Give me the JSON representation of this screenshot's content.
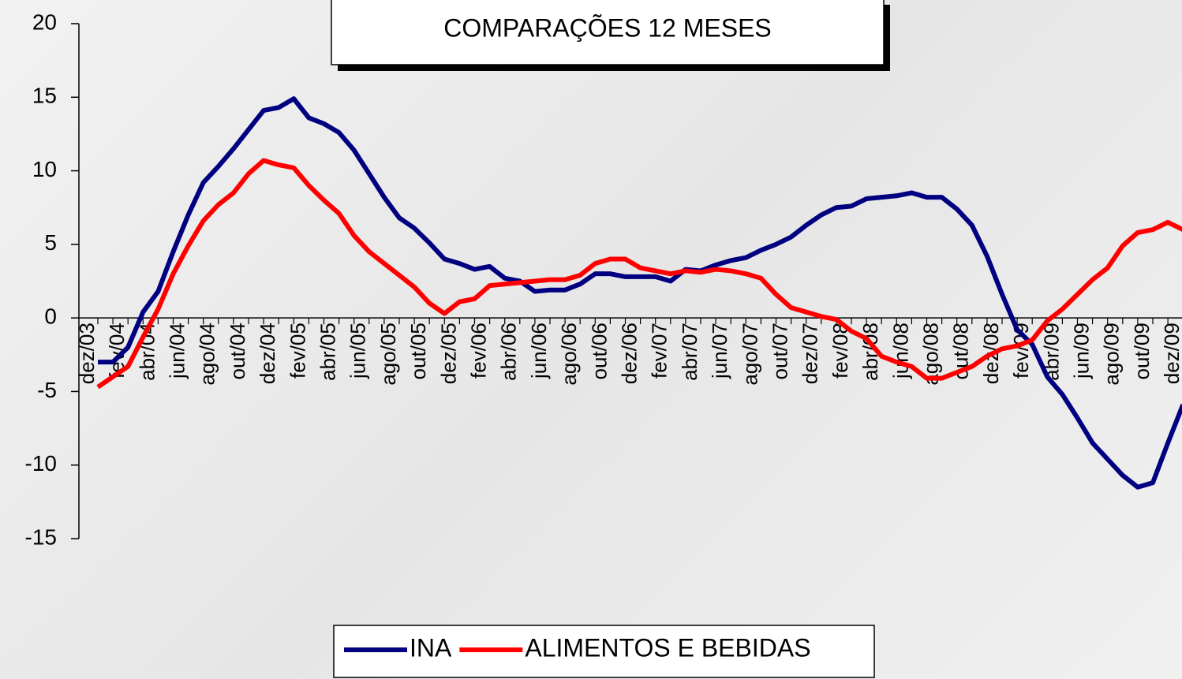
{
  "chart_data": {
    "type": "line",
    "title": "COMPARAÇÕES 12 MESES",
    "categories": [
      "dez/03",
      null,
      "fev/04",
      null,
      "abr/04",
      null,
      "jun/04",
      null,
      "ago/04",
      null,
      "out/04",
      null,
      "dez/04",
      null,
      "fev/05",
      null,
      "abr/05",
      null,
      "jun/05",
      null,
      "ago/05",
      null,
      "out/05",
      null,
      "dez/05",
      null,
      "fev/06",
      null,
      "abr/06",
      null,
      "jun/06",
      null,
      "ago/06",
      null,
      "out/06",
      null,
      "dez/06",
      null,
      "fev/07",
      null,
      "abr/07",
      null,
      "jun/07",
      null,
      "ago/07",
      null,
      "out/07",
      null,
      "dez/07",
      null,
      "fev/08",
      null,
      "abr/08",
      null,
      "jun/08",
      null,
      "ago/08",
      null,
      "out/08",
      null,
      "dez/08",
      null,
      "fev/09",
      null,
      "abr/09",
      null,
      "jun/09",
      null,
      "ago/09",
      null,
      "out/09",
      null,
      "dez/09"
    ],
    "series": [
      {
        "name": "INA",
        "color": "#000080",
        "values": [
          -3,
          -3,
          -2,
          0.4,
          1.8,
          4.5,
          7,
          9.2,
          10.3,
          11.5,
          12.8,
          14.1,
          14.3,
          14.9,
          13.6,
          13.2,
          12.6,
          11.4,
          9.8,
          8.2,
          6.8,
          6.1,
          5.1,
          4.0,
          3.7,
          3.3,
          3.5,
          2.7,
          2.5,
          1.8,
          1.9,
          1.9,
          2.3,
          3.0,
          3.0,
          2.8,
          2.8,
          2.8,
          2.5,
          3.3,
          3.2,
          3.6,
          3.9,
          4.1,
          4.6,
          5.0,
          5.5,
          6.3,
          7.0,
          7.5,
          7.6,
          8.1,
          8.2,
          8.3,
          8.5,
          8.2,
          8.2,
          7.4,
          6.3,
          4.2,
          1.6,
          -0.8,
          -1.8,
          -4,
          -5.2,
          -6.8,
          -8.5,
          -9.6,
          -10.7,
          -11.5,
          -11.2,
          -8.5,
          -5.9
        ]
      },
      {
        "name": "ALIMENTOS E BEBIDAS",
        "color": "#ff0000",
        "values": [
          -4.7,
          -4.0,
          -3.3,
          -1.3,
          0.6,
          3.0,
          4.9,
          6.6,
          7.7,
          8.5,
          9.8,
          10.7,
          10.4,
          10.2,
          9.0,
          8.0,
          7.1,
          5.6,
          4.5,
          3.7,
          2.9,
          2.1,
          1.0,
          0.3,
          1.1,
          1.3,
          2.2,
          2.3,
          2.4,
          2.5,
          2.6,
          2.6,
          2.9,
          3.7,
          4.0,
          4.0,
          3.4,
          3.2,
          3.0,
          3.2,
          3.1,
          3.3,
          3.2,
          3.0,
          2.7,
          1.6,
          0.7,
          0.4,
          0.1,
          -0.1,
          -0.9,
          -1.4,
          -2.6,
          -3.0,
          -3.3,
          -4.1,
          -4.1,
          -3.7,
          -3.3,
          -2.6,
          -2.1,
          -1.9,
          -1.5,
          -0.2,
          0.6,
          1.6,
          2.6,
          3.4,
          4.9,
          5.8,
          6.0,
          6.5,
          6.0
        ]
      }
    ],
    "ylim": [
      -15,
      20
    ],
    "yticks": [
      -15,
      -10,
      -5,
      0,
      5,
      10,
      15,
      20
    ]
  }
}
